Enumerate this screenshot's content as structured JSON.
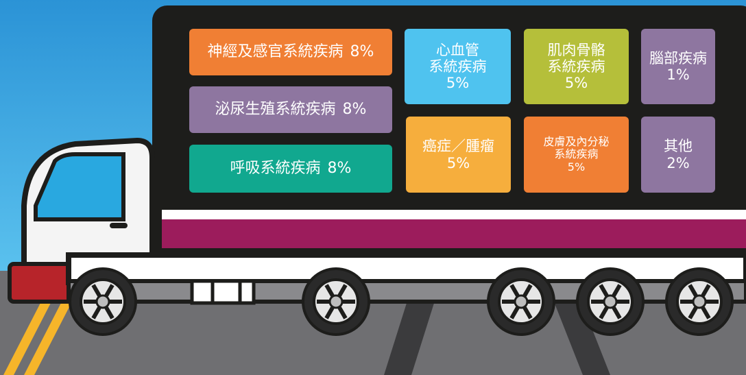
{
  "items": [
    {
      "lines": [
        "神經及感官系統疾病"
      ],
      "value": "8%"
    },
    {
      "lines": [
        "泌尿生殖系統疾病"
      ],
      "value": "8%"
    },
    {
      "lines": [
        "呼吸系統疾病"
      ],
      "value": "8%"
    },
    {
      "lines": [
        "心血管",
        "系統疾病"
      ],
      "value": "5%"
    },
    {
      "lines": [
        "肌肉骨骼",
        "系統疾病"
      ],
      "value": "5%"
    },
    {
      "lines": [
        "腦部疾病"
      ],
      "value": "1%"
    },
    {
      "lines": [
        "癌症／腫瘤"
      ],
      "value": "5%"
    },
    {
      "lines": [
        "皮膚及內分秘",
        "系統疾病"
      ],
      "value": "5%"
    },
    {
      "lines": [
        "其他"
      ],
      "value": "2%"
    }
  ]
}
